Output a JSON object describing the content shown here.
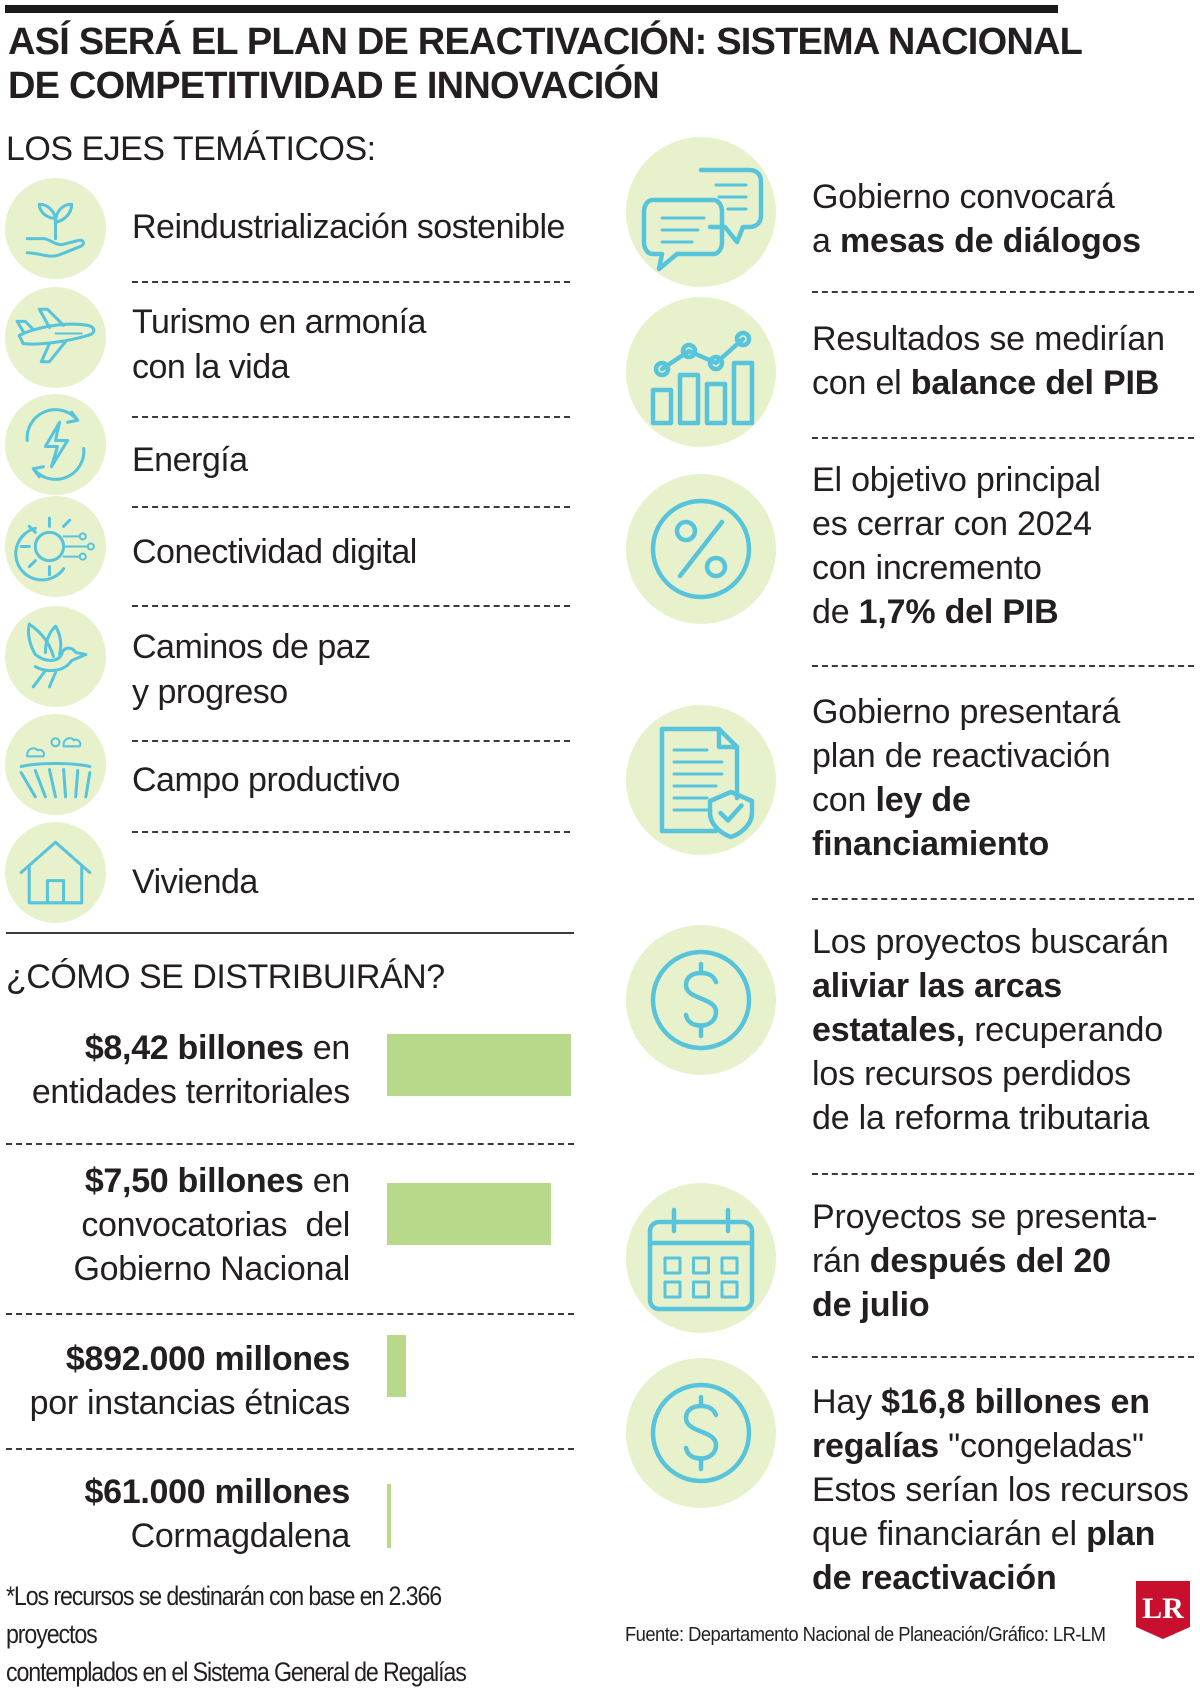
{
  "header": {
    "title_line1": "ASÍ SERÁ EL PLAN DE REACTIVACIÓN: SISTEMA NACIONAL",
    "title_line2": "DE COMPETITIVIDAD E INNOVACIÓN"
  },
  "ejes": {
    "heading": "LOS EJES TEMÁTICOS:",
    "items": [
      {
        "icon": "plant-in-hand-icon",
        "lines": [
          "Reindustrialización sostenible"
        ]
      },
      {
        "icon": "airplane-icon",
        "lines": [
          "Turismo en armonía",
          "con la vida"
        ]
      },
      {
        "icon": "energy-bolt-icon",
        "lines": [
          "Energía"
        ]
      },
      {
        "icon": "digital-gear-icon",
        "lines": [
          "Conectividad digital"
        ]
      },
      {
        "icon": "dove-icon",
        "lines": [
          "Caminos de paz",
          "y progreso"
        ]
      },
      {
        "icon": "field-icon",
        "lines": [
          "Campo productivo"
        ]
      },
      {
        "icon": "house-icon",
        "lines": [
          "Vivienda"
        ]
      }
    ]
  },
  "distribucion": {
    "heading": "¿CÓMO SE DISTRIBUIRÁN?",
    "bar_color": "#b9d98a",
    "items": [
      {
        "amount": "$8,42 billones",
        "rest_first": " en",
        "lines": [
          "entidades territoriales"
        ],
        "value_billones": 8.42
      },
      {
        "amount": "$7,50 billones",
        "rest_first": " en",
        "lines": [
          "convocatorias  del",
          "Gobierno Nacional"
        ],
        "value_billones": 7.5
      },
      {
        "amount": "$892.000 millones",
        "rest_first": "",
        "lines": [
          "por instancias étnicas"
        ],
        "value_billones": 0.892
      },
      {
        "amount": "$61.000 millones",
        "rest_first": "",
        "lines": [
          "Cormagdalena"
        ],
        "value_billones": 0.061
      }
    ],
    "note_line1": "*Los recursos se destinarán con base en 2.366 proyectos",
    "note_line2": "contemplados en el Sistema General de Regalías"
  },
  "facts": {
    "items": [
      {
        "icon": "chat-bubbles-icon",
        "lines": [
          [
            {
              "t": "Gobierno convocará"
            }
          ],
          [
            {
              "t": "a "
            },
            {
              "t": "mesas de diálogos",
              "b": true
            }
          ]
        ]
      },
      {
        "icon": "growth-chart-icon",
        "lines": [
          [
            {
              "t": "Resultados se medirían"
            }
          ],
          [
            {
              "t": "con el "
            },
            {
              "t": "balance del PIB",
              "b": true
            }
          ]
        ]
      },
      {
        "icon": "percent-icon",
        "lines": [
          [
            {
              "t": "El objetivo principal"
            }
          ],
          [
            {
              "t": "es cerrar con 2024"
            }
          ],
          [
            {
              "t": "con incremento"
            }
          ],
          [
            {
              "t": "de "
            },
            {
              "t": "1,7% del PIB",
              "b": true
            }
          ]
        ]
      },
      {
        "icon": "document-shield-icon",
        "lines": [
          [
            {
              "t": "Gobierno presentará"
            }
          ],
          [
            {
              "t": "plan de reactivación"
            }
          ],
          [
            {
              "t": "con "
            },
            {
              "t": "ley de",
              "b": true
            }
          ],
          [
            {
              "t": "financiamiento",
              "b": true
            }
          ]
        ]
      },
      {
        "icon": "dollar-icon",
        "lines": [
          [
            {
              "t": "Los proyectos buscarán"
            }
          ],
          [
            {
              "t": "aliviar las arcas",
              "b": true
            }
          ],
          [
            {
              "t": "estatales,",
              "b": true
            },
            {
              "t": " recuperando"
            }
          ],
          [
            {
              "t": "los recursos perdidos"
            }
          ],
          [
            {
              "t": "de la reforma tributaria"
            }
          ]
        ]
      },
      {
        "icon": "calendar-icon",
        "lines": [
          [
            {
              "t": "Proyectos se presenta-"
            }
          ],
          [
            {
              "t": "rán "
            },
            {
              "t": "después del 20",
              "b": true
            }
          ],
          [
            {
              "t": "de julio",
              "b": true
            }
          ]
        ]
      },
      {
        "icon": "dollar-icon",
        "lines": [
          [
            {
              "t": "Hay "
            },
            {
              "t": "$16,8 billones en",
              "b": true
            }
          ],
          [
            {
              "t": "regalías",
              "b": true
            },
            {
              "t": " \"congeladas\""
            }
          ],
          [
            {
              "t": "Estos serían los recursos"
            }
          ],
          [
            {
              "t": "que financiarán el "
            },
            {
              "t": "plan",
              "b": true
            }
          ],
          [
            {
              "t": "de reactivación",
              "b": true
            }
          ]
        ]
      }
    ]
  },
  "footer": {
    "source": "Fuente: Departamento Nacional de Planeación/Gráfico: LR-LM",
    "logo_text": "LR",
    "logo_color": "#c8102e"
  },
  "colors": {
    "circle_fill": "#e7f1cc",
    "icon_stroke": "#57c4dc"
  }
}
